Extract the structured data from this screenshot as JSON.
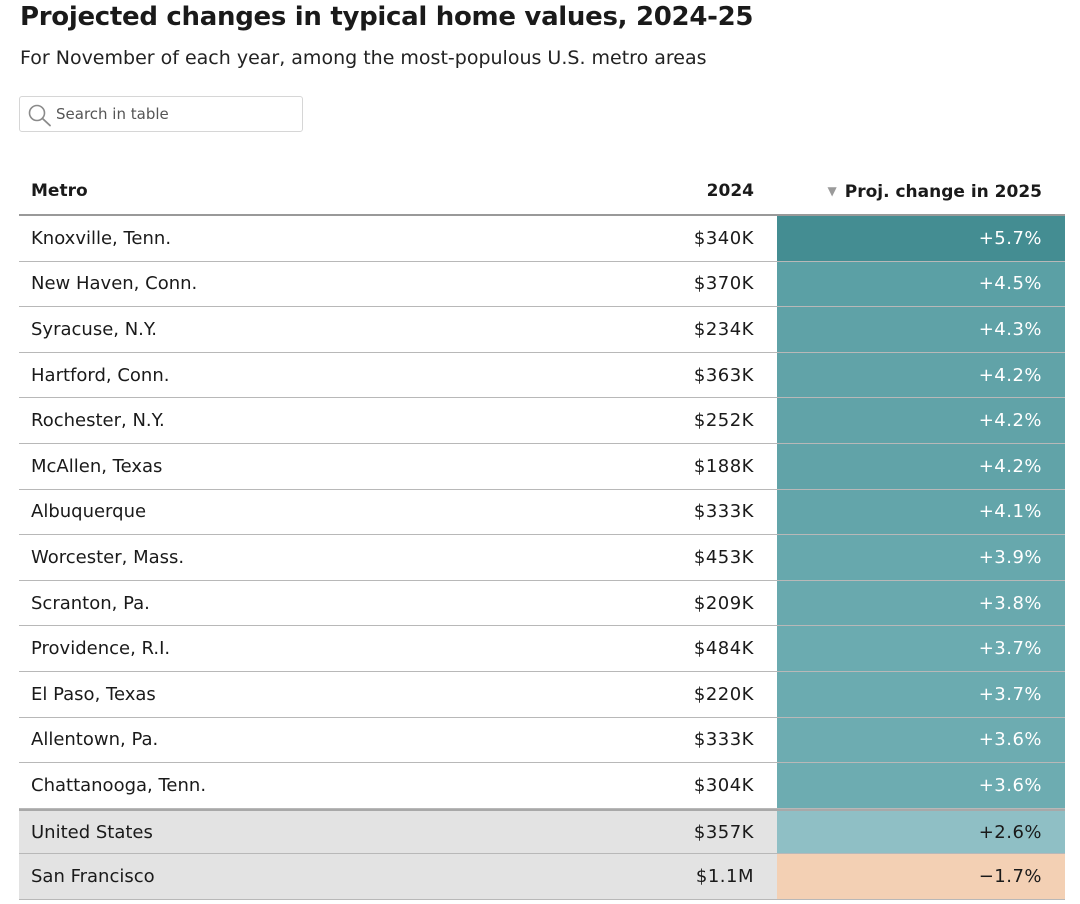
{
  "title": "Projected changes in typical home values, 2024-25",
  "subtitle": "For November of each year, among the most-populous U.S. metro areas",
  "search": {
    "placeholder": "Search in table",
    "value": ""
  },
  "table": {
    "headers": {
      "metro": "Metro",
      "y2024": "2024",
      "proj": "Proj. change in 2025"
    },
    "sort": {
      "column": "proj",
      "direction": "descending",
      "icon": "▼"
    },
    "rows": [
      {
        "metro": "Knoxville, Tenn.",
        "v2024": "$340K",
        "change": "+5.7%",
        "color": "#448d92"
      },
      {
        "metro": "New Haven, Conn.",
        "v2024": "$370K",
        "change": "+4.5%",
        "color": "#5ba0a5"
      },
      {
        "metro": "Syracuse, N.Y.",
        "v2024": "$234K",
        "change": "+4.3%",
        "color": "#5fa2a7"
      },
      {
        "metro": "Hartford, Conn.",
        "v2024": "$363K",
        "change": "+4.2%",
        "color": "#61a3a8"
      },
      {
        "metro": "Rochester, N.Y.",
        "v2024": "$252K",
        "change": "+4.2%",
        "color": "#61a3a8"
      },
      {
        "metro": "McAllen, Texas",
        "v2024": "$188K",
        "change": "+4.2%",
        "color": "#61a3a8"
      },
      {
        "metro": "Albuquerque",
        "v2024": "$333K",
        "change": "+4.1%",
        "color": "#63a5aa"
      },
      {
        "metro": "Worcester, Mass.",
        "v2024": "$453K",
        "change": "+3.9%",
        "color": "#67a8ad"
      },
      {
        "metro": "Scranton, Pa.",
        "v2024": "$209K",
        "change": "+3.8%",
        "color": "#69a9ae"
      },
      {
        "metro": "Providence, R.I.",
        "v2024": "$484K",
        "change": "+3.7%",
        "color": "#6babb0"
      },
      {
        "metro": "El Paso, Texas",
        "v2024": "$220K",
        "change": "+3.7%",
        "color": "#6babb0"
      },
      {
        "metro": "Allentown, Pa.",
        "v2024": "$333K",
        "change": "+3.6%",
        "color": "#6dacb1"
      },
      {
        "metro": "Chattanooga, Tenn.",
        "v2024": "$304K",
        "change": "+3.6%",
        "color": "#6dacb1"
      }
    ],
    "summary_rows": [
      {
        "metro": "United States",
        "v2024": "$357K",
        "change": "+2.6%",
        "color": "#8fbfc5"
      },
      {
        "metro": "San Francisco",
        "v2024": "$1.1M",
        "change": "−1.7%",
        "color": "#f3d0b4"
      }
    ]
  }
}
